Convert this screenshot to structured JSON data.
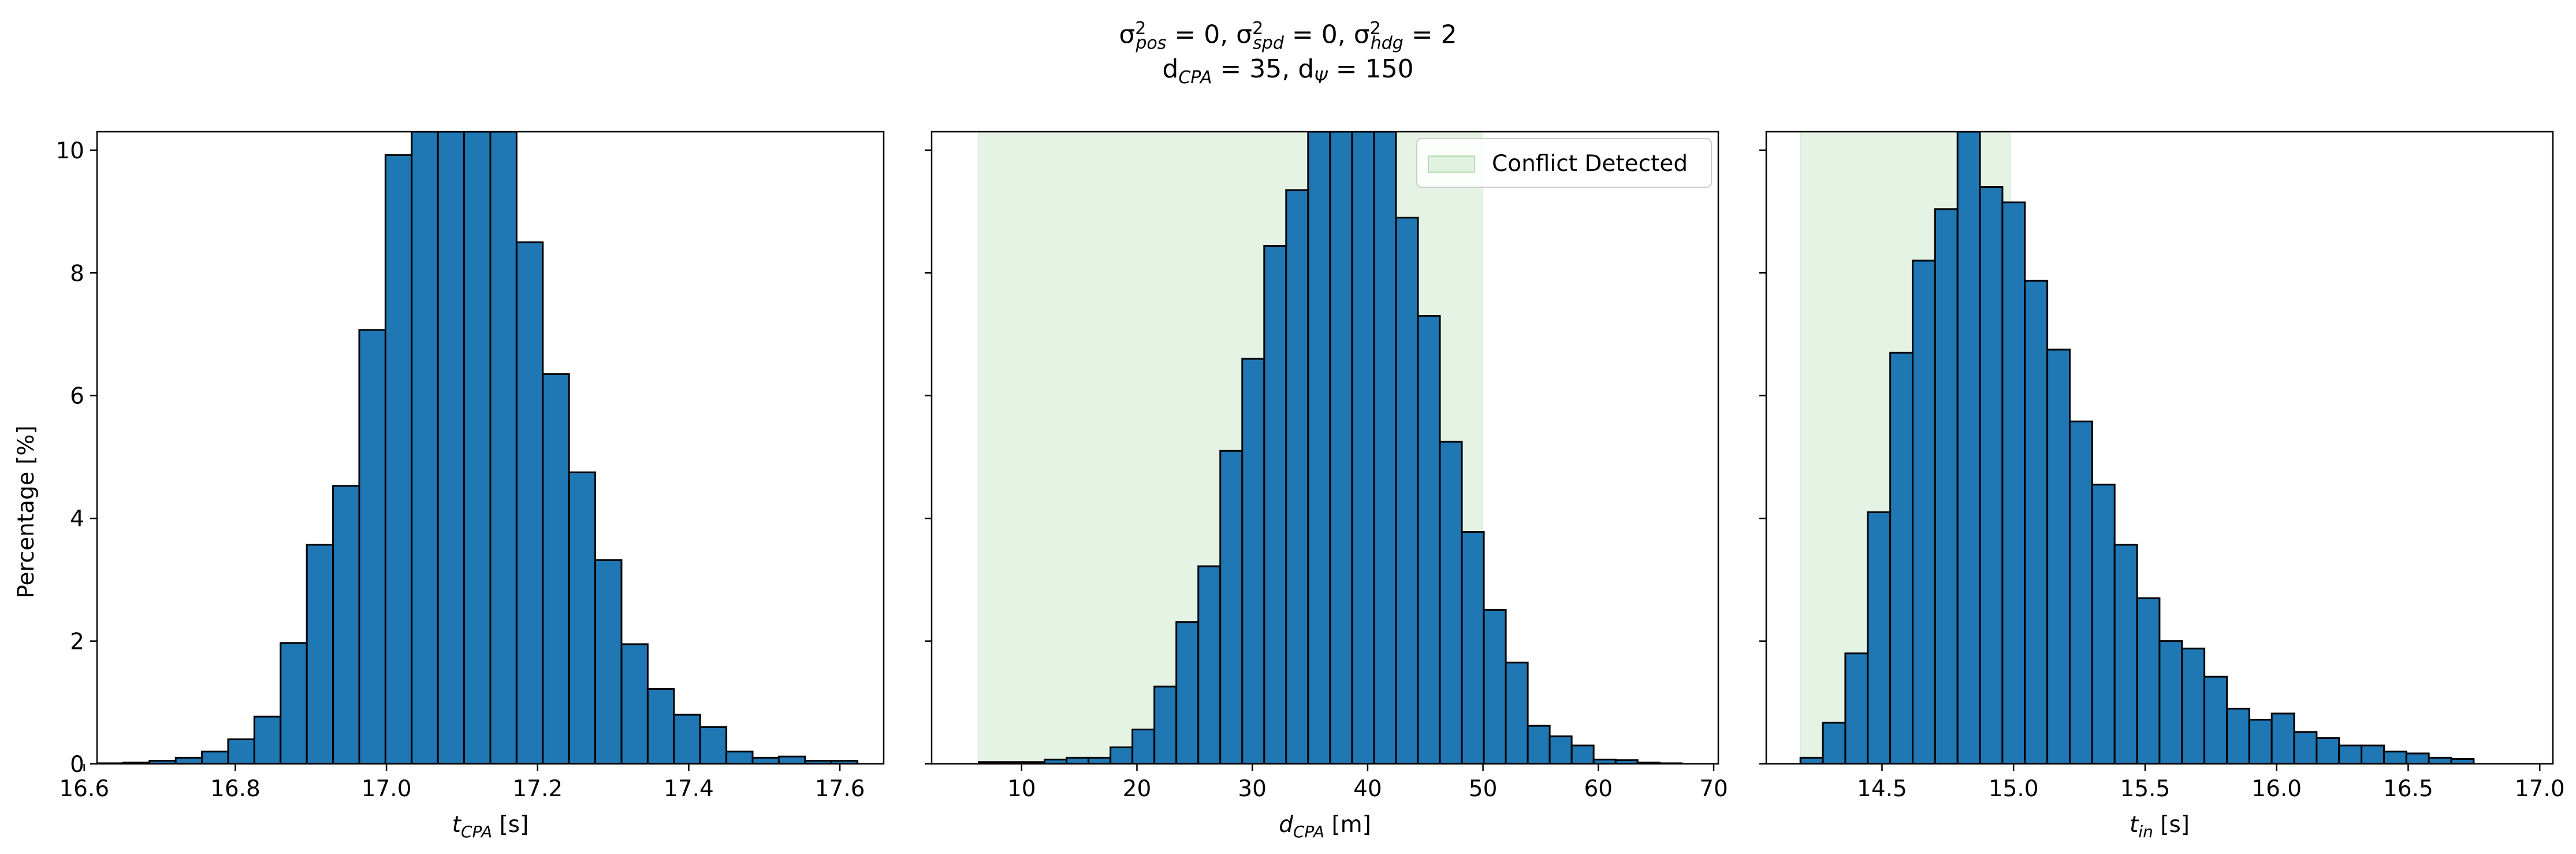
{
  "figure": {
    "title_line1_parts": [
      {
        "t": "σ"
      },
      {
        "t": "2",
        "sup": true
      },
      {
        "t": "pos",
        "sub": true
      },
      {
        "t": " = 0, σ"
      },
      {
        "t": "2",
        "sup": true
      },
      {
        "t": "spd",
        "sub": true
      },
      {
        "t": " = 0, σ"
      },
      {
        "t": "2",
        "sup": true
      },
      {
        "t": "hdg",
        "sub": true
      },
      {
        "t": " = 2"
      }
    ],
    "title_line2_parts": [
      {
        "t": "d"
      },
      {
        "t": "CPA",
        "sub": true
      },
      {
        "t": " = 35, d"
      },
      {
        "t": "Ψ",
        "sub": true
      },
      {
        "t": " = 150"
      }
    ],
    "ylabel": "Percentage [%]",
    "colors": {
      "bar": "#1f77b4",
      "edge": "#000000",
      "region": "#2ca02c"
    }
  },
  "chart_data": [
    {
      "type": "bar",
      "xlabel_main": "t",
      "xlabel_sub": "CPA",
      "xlabel_unit": " [s]",
      "xlim": [
        16.617,
        17.658
      ],
      "ylim": [
        0,
        10.3
      ],
      "xticks": [
        16.6,
        16.8,
        17.0,
        17.2,
        17.4,
        17.6
      ],
      "xtick_labels": [
        "16.6",
        "16.8",
        "17.0",
        "17.2",
        "17.4",
        "17.6"
      ],
      "yticks": [
        0,
        2,
        4,
        6,
        8,
        10
      ],
      "ytick_labels": [
        "0",
        "2",
        "4",
        "6",
        "8",
        "10"
      ],
      "bin_start": 16.617,
      "bin_width": 0.0347,
      "values": [
        0.01,
        0.02,
        0.05,
        0.1,
        0.2,
        0.4,
        0.77,
        1.97,
        3.57,
        4.53,
        7.07,
        9.92,
        10.3,
        10.3,
        10.3,
        10.3,
        8.5,
        6.35,
        4.75,
        3.32,
        1.95,
        1.22,
        0.8,
        0.6,
        0.2,
        0.1,
        0.12,
        0.05,
        0.05,
        0.0,
        0.02,
        0.01
      ],
      "region": null
    },
    {
      "type": "bar",
      "xlabel_main": "d",
      "xlabel_sub": "CPA",
      "xlabel_unit": " [m]",
      "xlim": [
        2.2,
        70.4
      ],
      "ylim": [
        0,
        10.3
      ],
      "xticks": [
        10,
        20,
        30,
        40,
        50,
        60,
        70
      ],
      "xtick_labels": [
        "10",
        "20",
        "30",
        "40",
        "50",
        "60",
        "70"
      ],
      "yticks": [
        0,
        2,
        4,
        6,
        8,
        10
      ],
      "ytick_labels": [],
      "bin_start": 6.28,
      "bin_width": 1.904,
      "values": [
        0.03,
        0.03,
        0.03,
        0.07,
        0.1,
        0.1,
        0.27,
        0.56,
        1.26,
        2.31,
        3.22,
        5.1,
        6.6,
        8.44,
        9.35,
        10.3,
        10.3,
        10.3,
        10.3,
        8.9,
        7.3,
        5.25,
        3.78,
        2.51,
        1.65,
        0.62,
        0.45,
        0.3,
        0.07,
        0.06,
        0.02,
        0.01
      ],
      "region": {
        "x0": 6.28,
        "x1": 50.0,
        "label": "Conflict Detected"
      }
    },
    {
      "type": "bar",
      "xlabel_main": "t",
      "xlabel_sub": "in",
      "xlabel_unit": " [s]",
      "xlim": [
        14.06,
        17.05
      ],
      "ylim": [
        0,
        10.3
      ],
      "xticks": [
        14.5,
        15.0,
        15.5,
        16.0,
        16.5,
        17.0
      ],
      "xtick_labels": [
        "14.5",
        "15.0",
        "15.5",
        "16.0",
        "16.5",
        "17.0"
      ],
      "yticks": [
        0,
        2,
        4,
        6,
        8,
        10
      ],
      "ytick_labels": [],
      "bin_start": 14.19,
      "bin_width": 0.0853,
      "values": [
        0.1,
        0.67,
        1.8,
        4.1,
        6.7,
        8.2,
        9.04,
        10.3,
        9.4,
        9.15,
        7.87,
        6.75,
        5.58,
        4.55,
        3.57,
        2.7,
        2.0,
        1.88,
        1.42,
        0.9,
        0.72,
        0.82,
        0.52,
        0.42,
        0.3,
        0.3,
        0.2,
        0.17,
        0.1,
        0.08,
        0.0
      ],
      "region": {
        "x0": 14.19,
        "x1": 14.99,
        "label": ""
      }
    }
  ]
}
